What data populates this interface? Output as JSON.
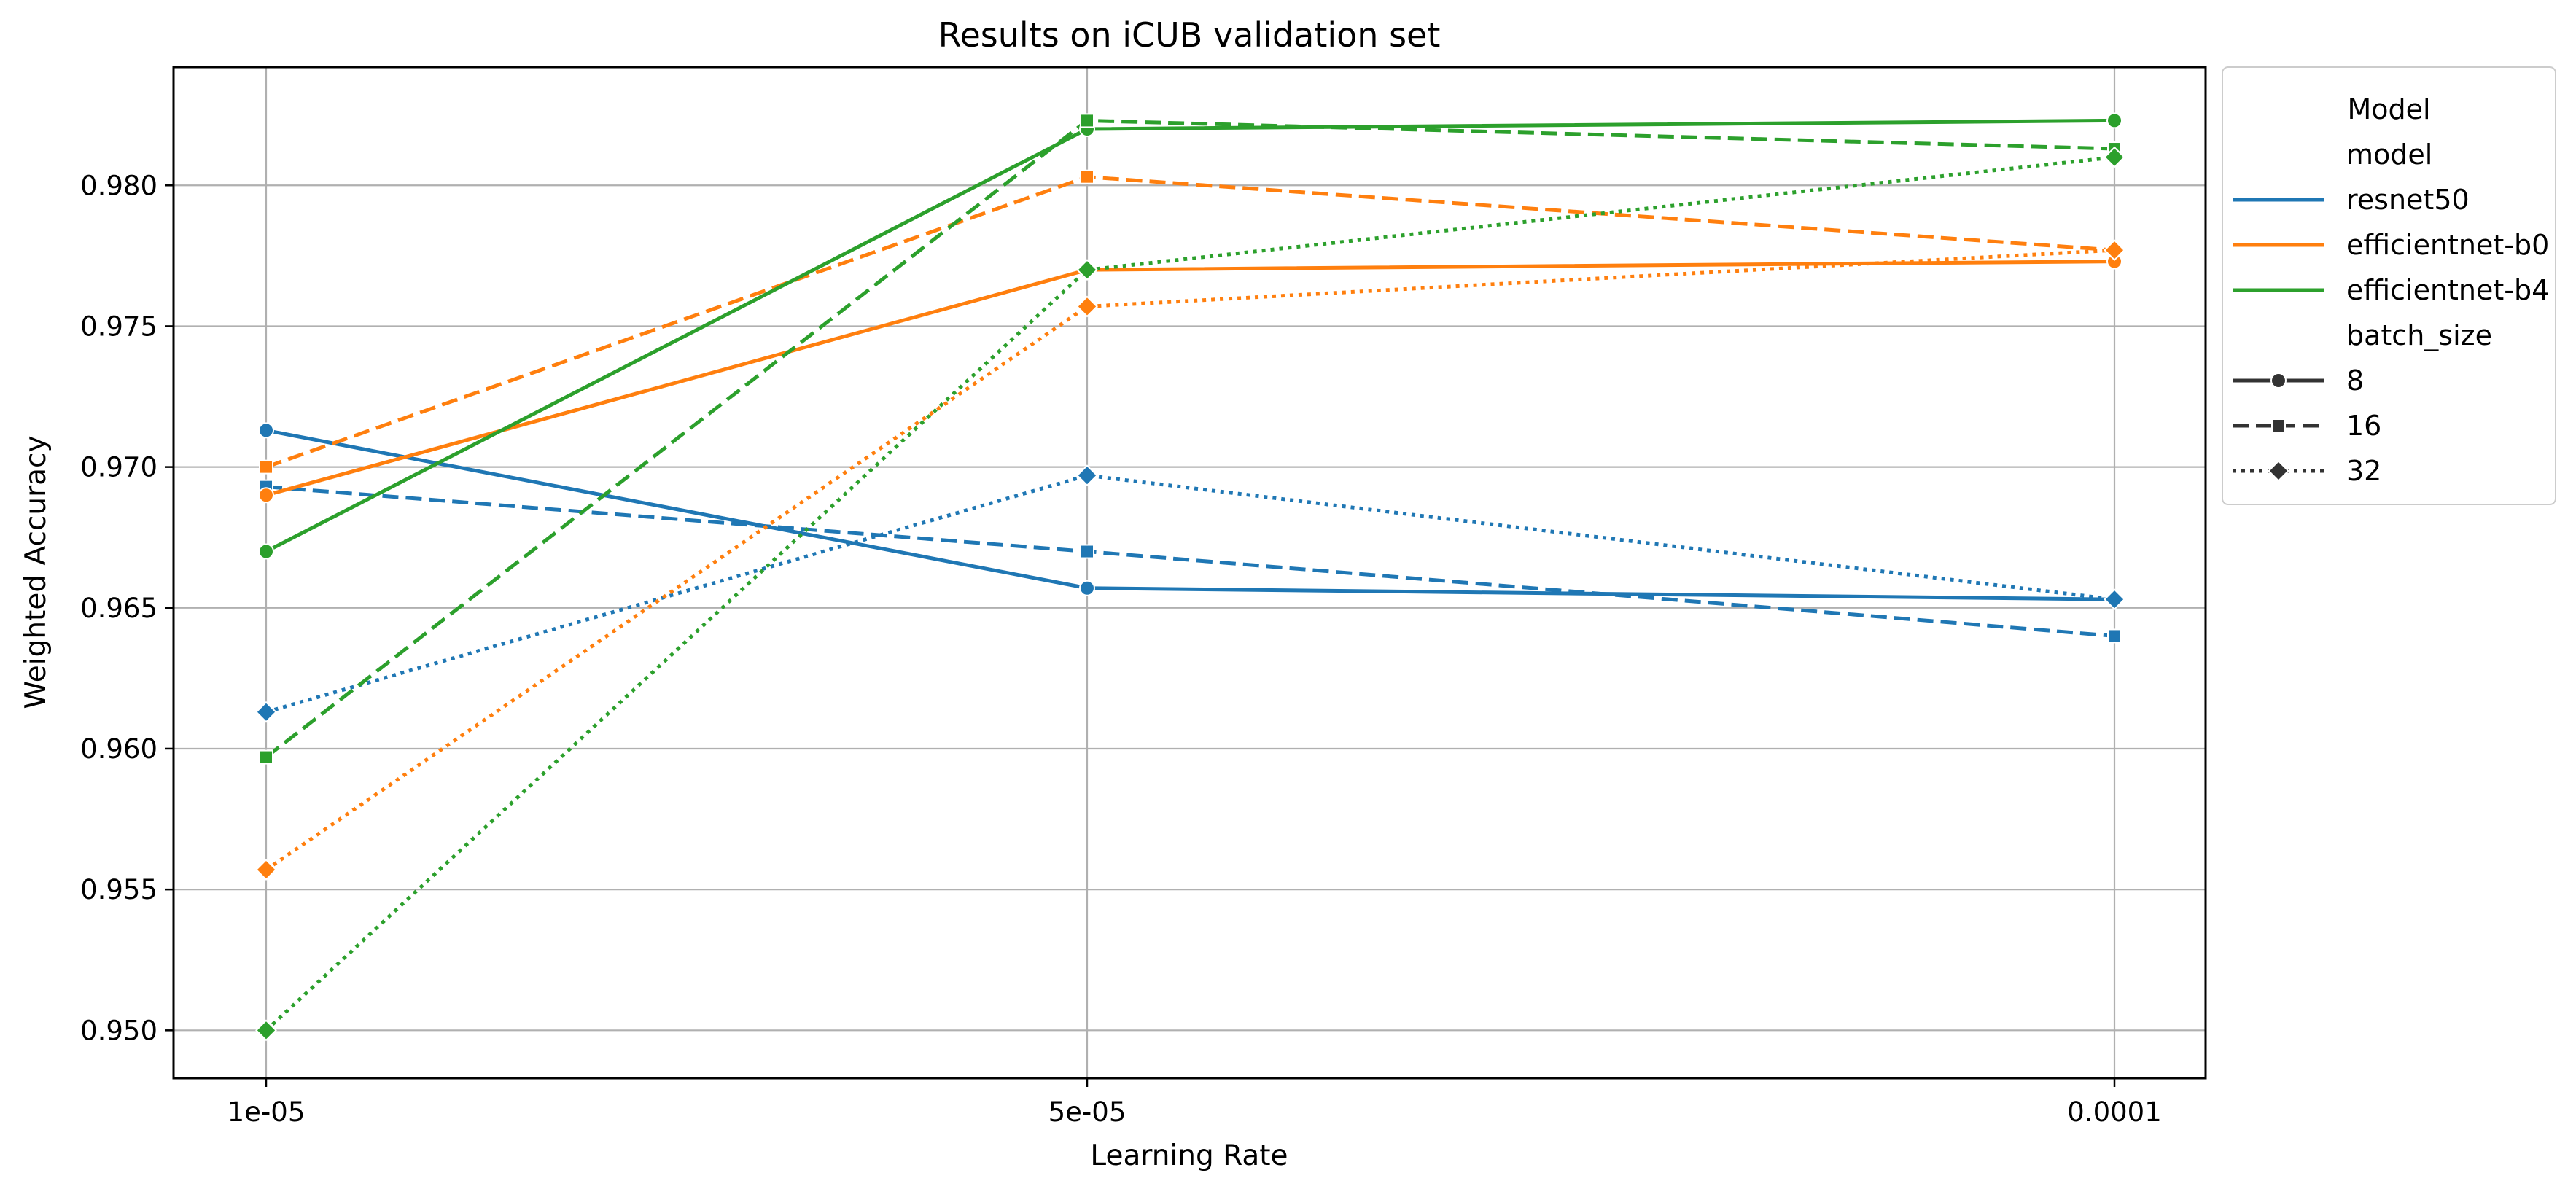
{
  "chart_data": {
    "type": "line",
    "title": "Results on iCUB validation set",
    "xlabel": "Learning Rate",
    "ylabel": "Weighted Accuracy",
    "x_categories": [
      "1e-05",
      "5e-05",
      "0.0001"
    ],
    "ylim": [
      0.9483,
      0.9842
    ],
    "y_ticks": [
      "0.950",
      "0.955",
      "0.960",
      "0.965",
      "0.970",
      "0.975",
      "0.980"
    ],
    "grid": true,
    "legend": {
      "title": "Model",
      "placement": "outside upper-right",
      "hue_title": "model",
      "style_title": "batch_size",
      "models": [
        {
          "name": "resnet50",
          "color": "#1f77b4"
        },
        {
          "name": "efficientnet-b0",
          "color": "#ff7f0e"
        },
        {
          "name": "efficientnet-b4",
          "color": "#2ca02c"
        }
      ],
      "batch_sizes": [
        {
          "name": "8",
          "marker": "circle",
          "dash": "solid"
        },
        {
          "name": "16",
          "marker": "square",
          "dash": "dashed"
        },
        {
          "name": "32",
          "marker": "diamond",
          "dash": "dotted"
        }
      ]
    },
    "series": [
      {
        "model": "resnet50",
        "batch_size": "8",
        "values": [
          0.9713,
          0.9657,
          0.9653
        ]
      },
      {
        "model": "resnet50",
        "batch_size": "16",
        "values": [
          0.9693,
          0.967,
          0.964
        ]
      },
      {
        "model": "resnet50",
        "batch_size": "32",
        "values": [
          0.9613,
          0.9697,
          0.9653
        ]
      },
      {
        "model": "efficientnet-b0",
        "batch_size": "8",
        "values": [
          0.969,
          0.977,
          0.9773
        ]
      },
      {
        "model": "efficientnet-b0",
        "batch_size": "16",
        "values": [
          0.97,
          0.9803,
          0.9777
        ]
      },
      {
        "model": "efficientnet-b0",
        "batch_size": "32",
        "values": [
          0.9557,
          0.9757,
          0.9777
        ]
      },
      {
        "model": "efficientnet-b4",
        "batch_size": "8",
        "values": [
          0.967,
          0.982,
          0.9823
        ]
      },
      {
        "model": "efficientnet-b4",
        "batch_size": "16",
        "values": [
          0.9597,
          0.9823,
          0.9813
        ]
      },
      {
        "model": "efficientnet-b4",
        "batch_size": "32",
        "values": [
          0.95,
          0.977,
          0.981
        ]
      }
    ]
  }
}
